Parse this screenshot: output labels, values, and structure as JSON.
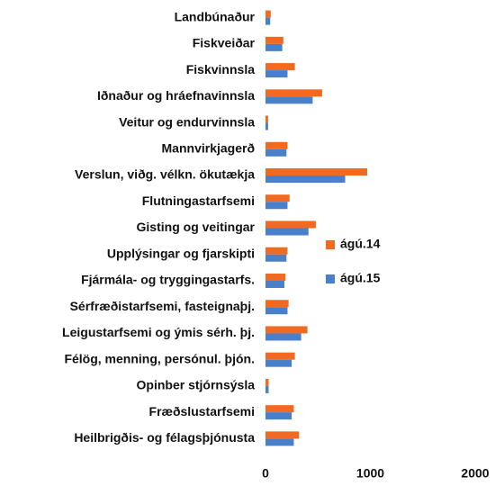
{
  "chart_data": {
    "type": "hbar",
    "categories": [
      "Landbúnaður",
      "Fiskveiðar",
      "Fiskvinnsla",
      "Iðnaður og hráefnavinnsla",
      "Veitur og endurvinnsla",
      "Mannvirkjagerð",
      "Verslun, viðg. vélkn. ökutækja",
      "Flutningastarfsemi",
      "Gisting og veitingar",
      "Upplýsingar og fjarskipti",
      "Fjármála- og tryggingastarfs.",
      "Sérfræðistarfsemi, fasteignaþj.",
      "Leigustarfsemi og ýmis sérh. þj.",
      "Félög, menning, persónul. þjón.",
      "Opinber stjórnsýsla",
      "Fræðslustarfsemi",
      "Heilbrigðis- og félagsþjónusta"
    ],
    "series": [
      {
        "name": "ágú.14",
        "color": "#f26a21",
        "values": [
          50,
          170,
          280,
          540,
          25,
          210,
          970,
          230,
          480,
          210,
          190,
          220,
          400,
          280,
          30,
          270,
          320
        ]
      },
      {
        "name": "ágú.15",
        "color": "#4a7fc9",
        "values": [
          45,
          160,
          210,
          450,
          25,
          200,
          760,
          210,
          410,
          200,
          180,
          210,
          340,
          250,
          30,
          250,
          270
        ]
      }
    ],
    "xlim": [
      0,
      2000
    ],
    "xticks": [
      0,
      1000,
      2000
    ],
    "grid": false,
    "legend": "right"
  }
}
